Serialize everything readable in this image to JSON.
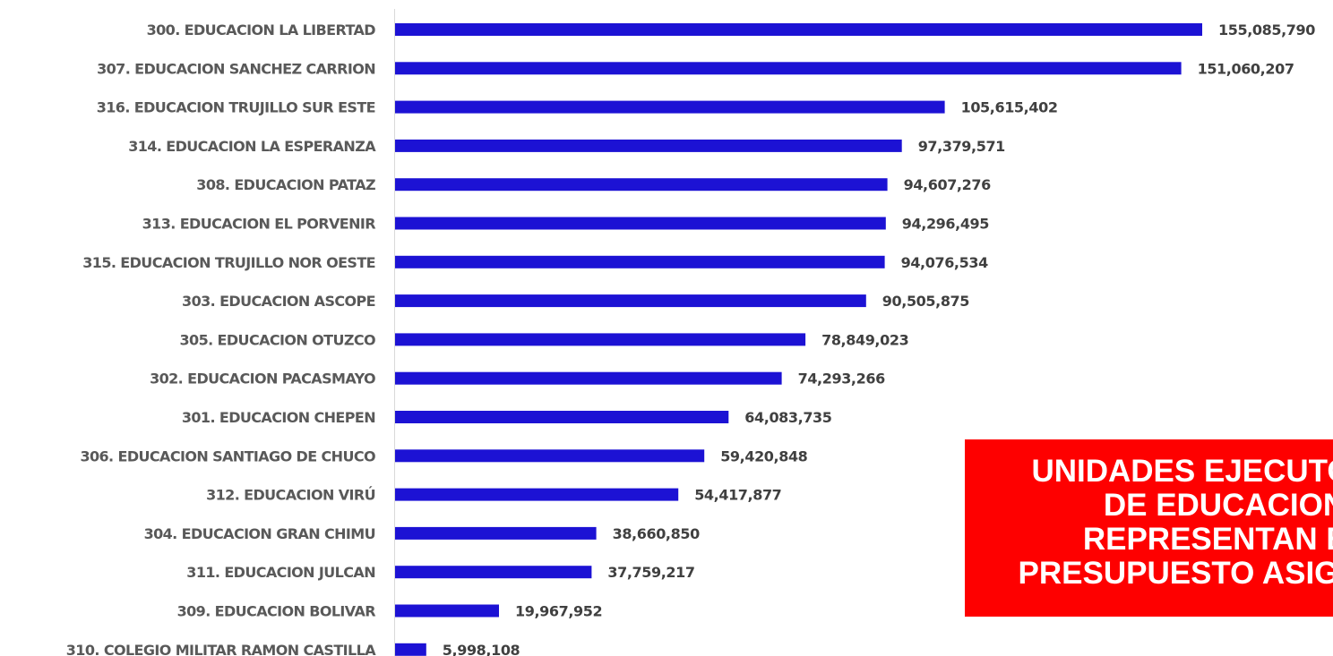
{
  "colors": {
    "bar": "#1c12d4",
    "axis": "#d9d9d9",
    "category_text": "#595959",
    "value_text": "#404040",
    "callout_background": "#fe0000",
    "callout_text": "#ffffff"
  },
  "chart_data": {
    "type": "bar",
    "orientation": "horizontal",
    "title": "",
    "xlabel": "",
    "ylabel": "",
    "grid": false,
    "legend": "none",
    "xlim": [
      0,
      160000000
    ],
    "categories": [
      "300. EDUCACION LA LIBERTAD",
      "307. EDUCACION SANCHEZ CARRION",
      "316. EDUCACION TRUJILLO SUR ESTE",
      "314. EDUCACION LA ESPERANZA",
      "308. EDUCACION PATAZ",
      "313. EDUCACION EL PORVENIR",
      "315. EDUCACION TRUJILLO NOR OESTE",
      "303. EDUCACION ASCOPE",
      "305. EDUCACION OTUZCO",
      "302. EDUCACION PACASMAYO",
      "301. EDUCACION CHEPEN",
      "306. EDUCACION SANTIAGO DE CHUCO",
      "312. EDUCACION VIRÚ",
      "304. EDUCACION GRAN CHIMU",
      "311. EDUCACION JULCAN",
      "309. EDUCACION BOLIVAR",
      "310. COLEGIO MILITAR RAMON CASTILLA"
    ],
    "values": [
      155085790,
      151060207,
      105615402,
      97379571,
      94607276,
      94296495,
      94076534,
      90505875,
      78849023,
      74293266,
      64083735,
      59420848,
      54417877,
      38660850,
      37759217,
      19967952,
      5998108
    ],
    "value_labels": [
      "155,085,790",
      "151,060,207",
      "105,615,402",
      "97,379,571",
      "94,607,276",
      "94,296,495",
      "94,076,534",
      "90,505,875",
      "78,849,023",
      "74,293,266",
      "64,083,735",
      "59,420,848",
      "54,417,877",
      "38,660,850",
      "37,759,217",
      "19,967,952",
      "5,998,108"
    ]
  },
  "callout": {
    "lines": [
      "UNIDADES EJECUTORAS",
      "DE EDUCACION",
      "REPRESENTAN EL",
      "PRESUPUESTO ASIGNADO"
    ]
  }
}
